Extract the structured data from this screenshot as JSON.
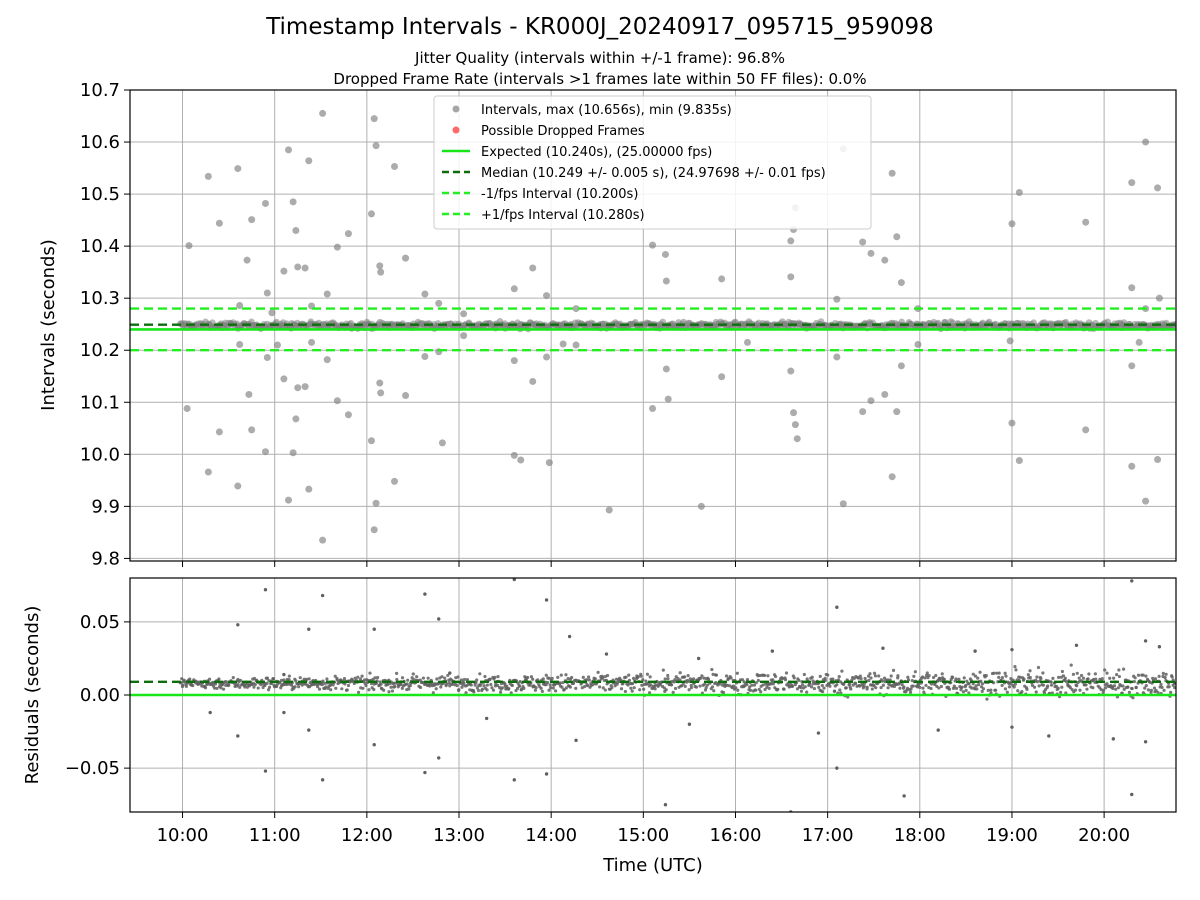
{
  "figure": {
    "title": "Timestamp Intervals - KR000J_20240917_095715_959098",
    "subtitle_1": "Jitter Quality (intervals within +/-1 frame): 96.8%",
    "subtitle_2": "Dropped Frame Rate (intervals >1 frames late within 50 FF files): 0.0%"
  },
  "colors": {
    "scatter": "#808080",
    "dropped": "#ff4d4d",
    "expected": "#19e619",
    "median": "#0b6e0b",
    "bound": "#22ee22",
    "grid": "#b0b0b0"
  },
  "chart_data": [
    {
      "type": "scatter",
      "ylabel": "Intervals (seconds)",
      "xlabel": "",
      "x_unit": "hours (UTC)",
      "xlim": [
        9.43,
        20.78
      ],
      "ylim": [
        9.795,
        10.7
      ],
      "yticks": [
        9.8,
        9.9,
        10.0,
        10.1,
        10.2,
        10.3,
        10.4,
        10.5,
        10.6,
        10.7
      ],
      "ytick_labels": [
        "9.8",
        "9.9",
        "10.0",
        "10.1",
        "10.2",
        "10.3",
        "10.4",
        "10.5",
        "10.6",
        "10.7"
      ],
      "grid": true,
      "legend_position": "top-center",
      "legend": [
        {
          "label": "Intervals, max (10.656s), min (9.835s)",
          "kind": "marker-gray"
        },
        {
          "label": "Possible Dropped Frames",
          "kind": "marker-red"
        },
        {
          "label": "Expected (10.240s), (25.00000 fps)",
          "kind": "solid-light"
        },
        {
          "label": "Median (10.249 +/- 0.005 s), (24.97698 +/- 0.01 fps)",
          "kind": "dashed-dark"
        },
        {
          "label": "-1/fps Interval (10.200s)",
          "kind": "dashed-light"
        },
        {
          "label": "+1/fps Interval (10.280s)",
          "kind": "dashed-light"
        }
      ],
      "reference_lines": {
        "expected": 10.24,
        "median": 10.249,
        "lower": 10.2,
        "upper": 10.28
      },
      "dense_band": {
        "x_start": 9.97,
        "x_end": 20.78,
        "y_center": 10.248,
        "y_half_width": 0.018
      },
      "points": [
        [
          10.07,
          10.401
        ],
        [
          10.05,
          10.088
        ],
        [
          10.28,
          10.534
        ],
        [
          10.28,
          9.966
        ],
        [
          10.4,
          10.444
        ],
        [
          10.4,
          10.043
        ],
        [
          10.6,
          10.549
        ],
        [
          10.6,
          9.939
        ],
        [
          10.62,
          10.286
        ],
        [
          10.62,
          10.211
        ],
        [
          10.7,
          10.373
        ],
        [
          10.72,
          10.115
        ],
        [
          10.75,
          10.451
        ],
        [
          10.75,
          10.047
        ],
        [
          10.9,
          10.482
        ],
        [
          10.9,
          10.005
        ],
        [
          10.92,
          10.31
        ],
        [
          10.92,
          10.186
        ],
        [
          10.97,
          10.272
        ],
        [
          11.03,
          10.21
        ],
        [
          11.1,
          10.352
        ],
        [
          11.1,
          10.145
        ],
        [
          11.15,
          10.585
        ],
        [
          11.15,
          9.912
        ],
        [
          11.2,
          10.485
        ],
        [
          11.2,
          10.003
        ],
        [
          11.23,
          10.43
        ],
        [
          11.23,
          10.068
        ],
        [
          11.25,
          10.36
        ],
        [
          11.25,
          10.128
        ],
        [
          11.33,
          10.358
        ],
        [
          11.33,
          10.13
        ],
        [
          11.37,
          10.564
        ],
        [
          11.37,
          9.933
        ],
        [
          11.4,
          10.285
        ],
        [
          11.4,
          10.215
        ],
        [
          11.52,
          10.655
        ],
        [
          11.52,
          9.835
        ],
        [
          11.57,
          10.308
        ],
        [
          11.57,
          10.182
        ],
        [
          11.68,
          10.398
        ],
        [
          11.68,
          10.103
        ],
        [
          11.8,
          10.424
        ],
        [
          11.8,
          10.076
        ],
        [
          12.05,
          10.462
        ],
        [
          12.05,
          10.026
        ],
        [
          12.08,
          10.645
        ],
        [
          12.08,
          9.855
        ],
        [
          12.1,
          10.593
        ],
        [
          12.1,
          9.906
        ],
        [
          12.14,
          10.362
        ],
        [
          12.14,
          10.137
        ],
        [
          12.15,
          10.35
        ],
        [
          12.15,
          10.118
        ],
        [
          12.3,
          10.553
        ],
        [
          12.3,
          9.948
        ],
        [
          12.42,
          10.377
        ],
        [
          12.42,
          10.113
        ],
        [
          12.63,
          10.308
        ],
        [
          12.63,
          10.188
        ],
        [
          12.78,
          10.29
        ],
        [
          12.78,
          10.197
        ],
        [
          12.82,
          10.022
        ],
        [
          13.05,
          10.27
        ],
        [
          13.05,
          10.228
        ],
        [
          13.6,
          10.318
        ],
        [
          13.6,
          10.18
        ],
        [
          13.6,
          9.998
        ],
        [
          13.67,
          9.989
        ],
        [
          13.8,
          10.358
        ],
        [
          13.8,
          10.14
        ],
        [
          13.95,
          10.305
        ],
        [
          13.95,
          10.187
        ],
        [
          13.98,
          9.984
        ],
        [
          14.13,
          10.212
        ],
        [
          14.27,
          10.28
        ],
        [
          14.27,
          10.21
        ],
        [
          14.63,
          9.893
        ],
        [
          15.1,
          10.402
        ],
        [
          15.1,
          10.088
        ],
        [
          15.24,
          10.384
        ],
        [
          15.25,
          10.333
        ],
        [
          15.25,
          10.164
        ],
        [
          15.27,
          10.106
        ],
        [
          15.63,
          9.9
        ],
        [
          15.85,
          10.337
        ],
        [
          15.85,
          10.149
        ],
        [
          16.13,
          10.215
        ],
        [
          16.6,
          10.341
        ],
        [
          16.6,
          10.16
        ],
        [
          16.6,
          10.41
        ],
        [
          16.63,
          10.432
        ],
        [
          16.63,
          10.08
        ],
        [
          16.65,
          10.474
        ],
        [
          16.65,
          10.057
        ],
        [
          16.67,
          10.03
        ],
        [
          17.1,
          10.298
        ],
        [
          17.1,
          10.187
        ],
        [
          17.17,
          10.587
        ],
        [
          17.17,
          9.905
        ],
        [
          17.38,
          10.408
        ],
        [
          17.38,
          10.082
        ],
        [
          17.47,
          10.386
        ],
        [
          17.47,
          10.103
        ],
        [
          17.62,
          10.373
        ],
        [
          17.62,
          10.115
        ],
        [
          17.7,
          10.54
        ],
        [
          17.7,
          9.957
        ],
        [
          17.75,
          10.418
        ],
        [
          17.75,
          10.082
        ],
        [
          17.8,
          10.33
        ],
        [
          17.8,
          10.17
        ],
        [
          17.98,
          10.28
        ],
        [
          17.98,
          10.211
        ],
        [
          19.0,
          10.443
        ],
        [
          19.0,
          10.06
        ],
        [
          19.08,
          10.503
        ],
        [
          19.08,
          9.988
        ],
        [
          18.98,
          10.218
        ],
        [
          19.8,
          10.446
        ],
        [
          19.8,
          10.047
        ],
        [
          20.3,
          10.522
        ],
        [
          20.3,
          9.977
        ],
        [
          20.3,
          10.32
        ],
        [
          20.3,
          10.17
        ],
        [
          20.45,
          10.6
        ],
        [
          20.45,
          9.91
        ],
        [
          20.45,
          10.28
        ],
        [
          20.58,
          10.512
        ],
        [
          20.58,
          9.99
        ],
        [
          20.6,
          10.3
        ],
        [
          20.38,
          10.215
        ]
      ]
    },
    {
      "type": "scatter",
      "ylabel": "Residuals (seconds)",
      "xlabel": "Time (UTC)",
      "x_unit": "hours (UTC)",
      "xlim": [
        9.43,
        20.78
      ],
      "ylim": [
        -0.08,
        0.08
      ],
      "yticks": [
        -0.05,
        0.0,
        0.05
      ],
      "ytick_labels": [
        "−0.05",
        "0.00",
        "0.05"
      ],
      "xticks": [
        10,
        11,
        12,
        13,
        14,
        15,
        16,
        17,
        18,
        19,
        20
      ],
      "xtick_labels": [
        "10:00",
        "11:00",
        "12:00",
        "13:00",
        "14:00",
        "15:00",
        "16:00",
        "17:00",
        "18:00",
        "19:00",
        "20:00"
      ],
      "grid": true,
      "reference_lines": {
        "expected": 0.0,
        "median": 0.009
      },
      "points": [
        [
          10.9,
          0.072
        ],
        [
          10.9,
          -0.052
        ],
        [
          10.6,
          0.048
        ],
        [
          10.6,
          -0.028
        ],
        [
          11.52,
          0.068
        ],
        [
          11.52,
          -0.058
        ],
        [
          11.37,
          0.045
        ],
        [
          11.37,
          -0.024
        ],
        [
          12.08,
          0.045
        ],
        [
          12.08,
          -0.034
        ],
        [
          12.63,
          0.069
        ],
        [
          12.63,
          -0.053
        ],
        [
          12.78,
          0.052
        ],
        [
          12.78,
          -0.043
        ],
        [
          13.6,
          0.079
        ],
        [
          13.6,
          -0.058
        ],
        [
          13.95,
          0.065
        ],
        [
          13.95,
          -0.054
        ],
        [
          14.2,
          0.04
        ],
        [
          14.27,
          -0.031
        ],
        [
          15.24,
          -0.075
        ],
        [
          15.6,
          0.025
        ],
        [
          16.6,
          -0.08
        ],
        [
          17.1,
          0.06
        ],
        [
          17.1,
          -0.05
        ],
        [
          17.83,
          -0.069
        ],
        [
          19.0,
          0.031
        ],
        [
          19.0,
          -0.022
        ],
        [
          20.3,
          0.078
        ],
        [
          20.3,
          -0.068
        ],
        [
          20.45,
          0.037
        ],
        [
          20.45,
          -0.032
        ],
        [
          11.1,
          0.014
        ],
        [
          11.1,
          -0.012
        ],
        [
          12.9,
          0.015
        ],
        [
          13.3,
          -0.016
        ],
        [
          14.6,
          0.028
        ],
        [
          15.5,
          -0.02
        ],
        [
          16.4,
          0.03
        ],
        [
          16.9,
          -0.026
        ],
        [
          17.6,
          0.032
        ],
        [
          18.2,
          -0.024
        ],
        [
          18.6,
          0.03
        ],
        [
          19.4,
          -0.028
        ],
        [
          19.7,
          0.034
        ],
        [
          20.1,
          -0.03
        ],
        [
          20.6,
          0.033
        ],
        [
          10.3,
          -0.012
        ]
      ]
    }
  ]
}
